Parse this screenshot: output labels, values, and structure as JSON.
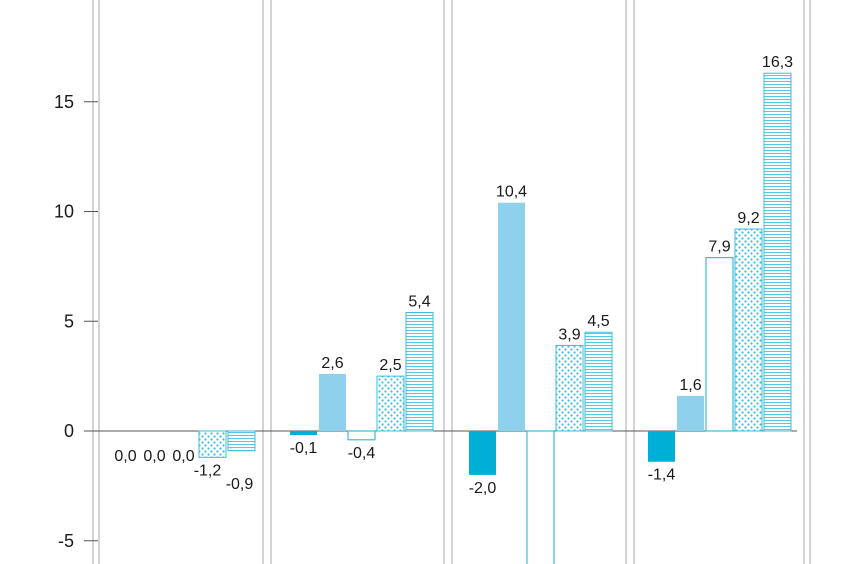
{
  "chart_data": {
    "type": "bar",
    "title": "",
    "xlabel": "",
    "ylabel": "",
    "ylim": [
      -6,
      19.5
    ],
    "grid": false,
    "y_ticks": [
      {
        "value": 15,
        "label": "15"
      },
      {
        "value": 10,
        "label": "10"
      },
      {
        "value": 5,
        "label": "5"
      },
      {
        "value": 0,
        "label": "0"
      },
      {
        "value": -5,
        "label": "-5"
      }
    ],
    "groups": [
      {
        "values": [
          0.0,
          0.0,
          0.0,
          -1.2,
          -0.9
        ],
        "labels": [
          "0,0",
          "0,0",
          "0,0",
          "-1,2",
          "-0,9"
        ]
      },
      {
        "values": [
          -0.1,
          2.6,
          -0.4,
          2.5,
          5.4
        ],
        "labels": [
          "-0,1",
          "2,6",
          "-0,4",
          "2,5",
          "5,4"
        ]
      },
      {
        "values": [
          -2.0,
          10.4,
          -6.5,
          3.9,
          4.5
        ],
        "labels": [
          "-2,0",
          "10,4",
          "",
          "3,9",
          "4,5"
        ]
      },
      {
        "values": [
          -1.4,
          1.6,
          7.9,
          9.2,
          16.3
        ],
        "labels": [
          "-1,4",
          "1,6",
          "7,9",
          "9,2",
          "16,3"
        ]
      }
    ],
    "series_styles": [
      {
        "fill": "solid",
        "color": "#00afd6"
      },
      {
        "fill": "solid",
        "color": "#8fd1ec"
      },
      {
        "fill": "outline",
        "color": "#3cbcdf"
      },
      {
        "fill": "dots",
        "color": "#3cbcdf"
      },
      {
        "fill": "lines",
        "color": "#3cbcdf"
      }
    ],
    "colors": {
      "axis": "#555555",
      "divider": "#aaaaaa"
    }
  }
}
